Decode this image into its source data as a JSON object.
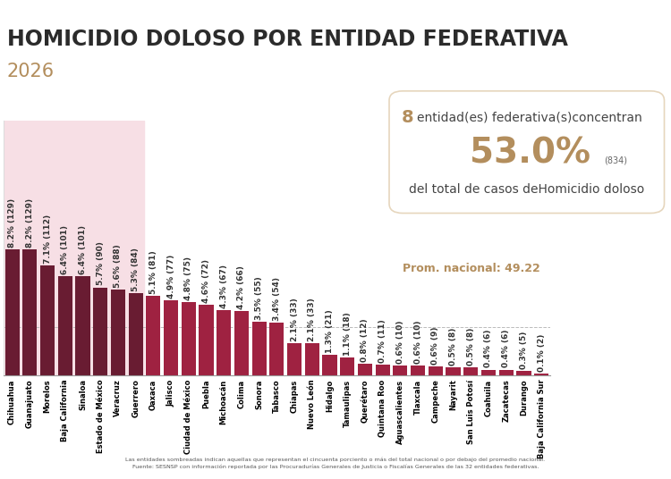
{
  "chart_data": {
    "type": "bar",
    "title": "HOMICIDIO DOLOSO POR ENTIDAD FEDERATIVA",
    "subtitle": "2026",
    "categories": [
      "Chihuahua",
      "Guanajuato",
      "Morelos",
      "Baja California",
      "Sinaloa",
      "Estado de México",
      "Veracruz",
      "Guerrero",
      "Oaxaca",
      "Jalisco",
      "Ciudad de México",
      "Puebla",
      "Michoacán",
      "Colima",
      "Sonora",
      "Tabasco",
      "Chiapas",
      "Nuevo León",
      "Hidalgo",
      "Tamaulipas",
      "Querétaro",
      "Quintana Roo",
      "Aguascalientes",
      "Tlaxcala",
      "Campeche",
      "Nayarit",
      "San Luis Potosí",
      "Coahuila",
      "Zacatecas",
      "Durango",
      "Baja California Sur"
    ],
    "values": [
      129,
      129,
      112,
      101,
      101,
      90,
      88,
      84,
      81,
      77,
      75,
      72,
      67,
      66,
      55,
      54,
      33,
      33,
      21,
      18,
      12,
      11,
      10,
      10,
      9,
      8,
      8,
      6,
      6,
      5,
      2
    ],
    "value_labels": [
      "8.2% (129)",
      "8.2% (129)",
      "7.1% (112)",
      "6.4% (101)",
      "6.4% (101)",
      "5.7% (90)",
      "5.6% (88)",
      "5.3% (84)",
      "5.1% (81)",
      "4.9% (77)",
      "4.8% (75)",
      "4.6% (72)",
      "4.3% (67)",
      "4.2% (66)",
      "3.5% (55)",
      "3.4% (54)",
      "2.1% (33)",
      "2.1% (33)",
      "1.3% (21)",
      "1.1% (18)",
      "0.8% (12)",
      "0.7% (11)",
      "0.6% (10)",
      "0.6% (10)",
      "0.6% (9)",
      "0.5% (8)",
      "0.5% (8)",
      "0.4% (6)",
      "0.4% (6)",
      "0.3% (5)",
      "0.1% (2)"
    ],
    "data_labels": true,
    "colors": [
      "#691c32",
      "#691c32",
      "#691c32",
      "#691c32",
      "#691c32",
      "#691c32",
      "#691c32",
      "#691c32",
      "#9f2241",
      "#9f2241",
      "#9f2241",
      "#9f2241",
      "#9f2241",
      "#9f2241",
      "#9f2241",
      "#9f2241",
      "#9f2241",
      "#9f2241",
      "#9f2241",
      "#9f2241",
      "#9f2241",
      "#9f2241",
      "#9f2241",
      "#9f2241",
      "#9f2241",
      "#9f2241",
      "#9f2241",
      "#9f2241",
      "#9f2241",
      "#9f2241",
      "#9f2241"
    ],
    "ylim": [
      0,
      260
    ],
    "tick_labels": "x",
    "grid": false,
    "average": {
      "value": 49.22,
      "label": "Prom. nacional: 49.22"
    },
    "summary": {
      "count": 8,
      "count_text": "entidad(es) federativa(s)concentran",
      "percent_label": "53.0%",
      "cases_label": "(834)",
      "text": "del total de casos deHomicidio doloso"
    },
    "footnotes": [
      "Las entidades sombreadas indican aquellas que representan el cincuenta porciento o más del total nacional o por debajo del promedio nacional.",
      "Fuente: SESNSP con información reportada por las Procuradurías Generales de Justicia o Fiscalías Generales de las 32 entidades federativas."
    ]
  }
}
